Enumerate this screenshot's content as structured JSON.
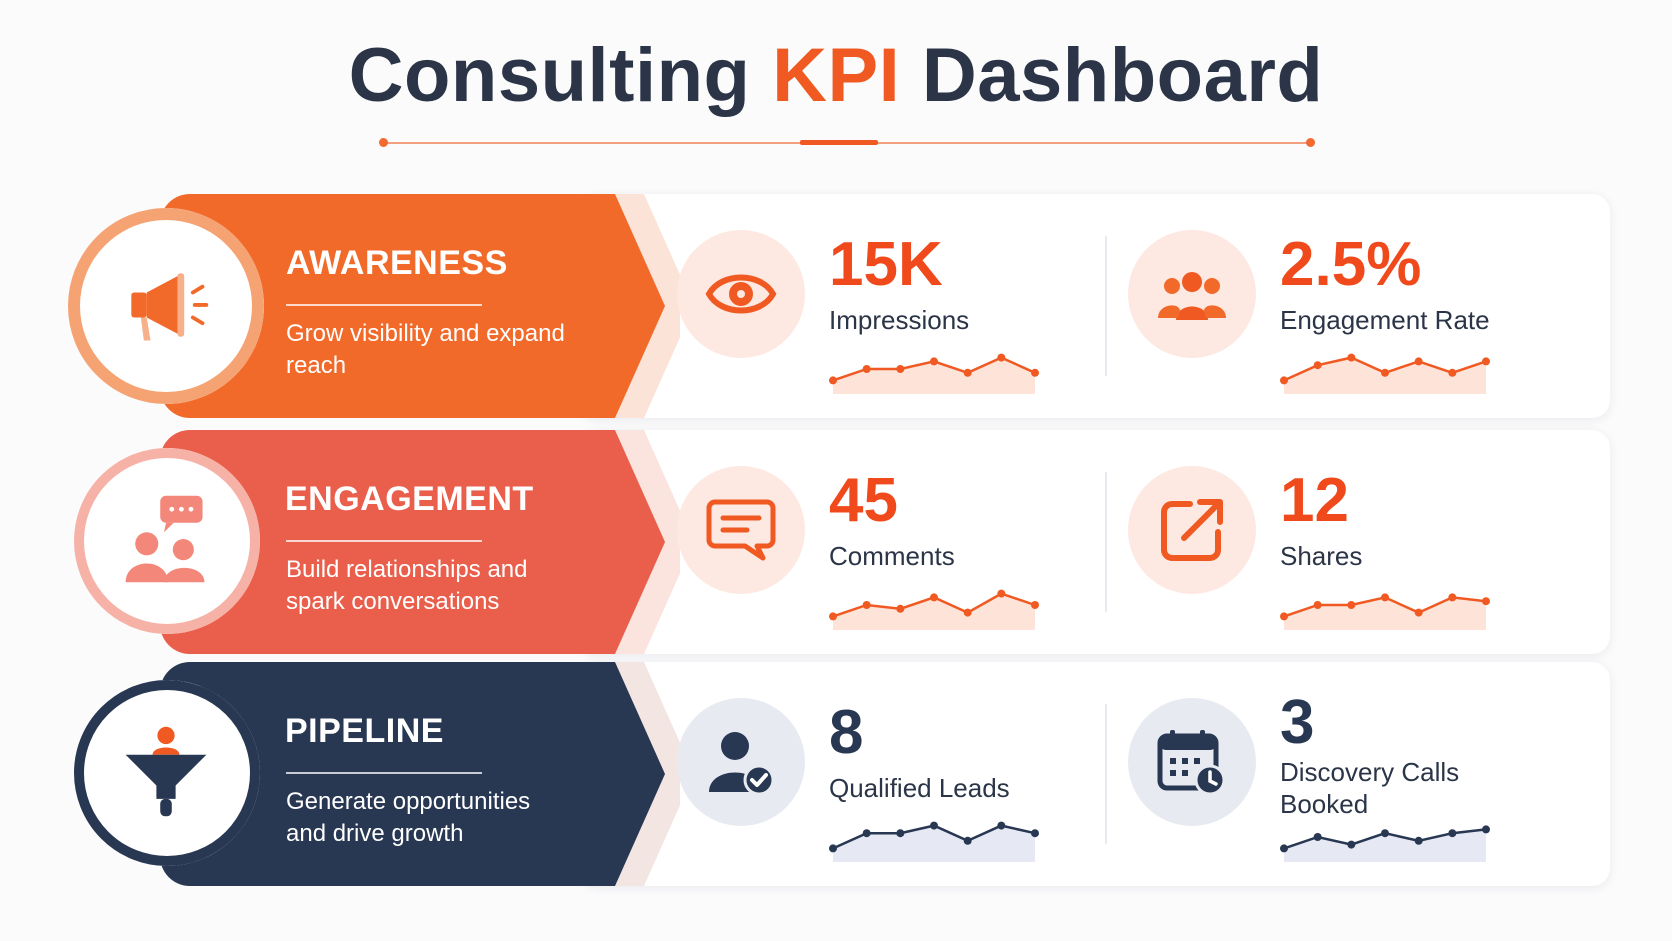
{
  "header": {
    "title_part1": "Consulting",
    "title_accent": "KPI",
    "title_part2": "Dashboard"
  },
  "colors": {
    "orange": "#f26a2a",
    "coral": "#ea5e4c",
    "navy": "#283752",
    "accent_text": "#f04a1c"
  },
  "rows": [
    {
      "category": "AWARENESS",
      "description": "Grow visibility and expand reach",
      "icon": "megaphone-icon",
      "kpis": [
        {
          "value": "15K",
          "label": "Impressions",
          "icon": "eye-icon",
          "trend": [
            2,
            5,
            5,
            7,
            4,
            8,
            4
          ]
        },
        {
          "value": "2.5%",
          "label": "Engagement Rate",
          "icon": "group-icon",
          "trend": [
            2,
            6,
            8,
            4,
            7,
            4,
            7
          ]
        }
      ]
    },
    {
      "category": "ENGAGEMENT",
      "description": "Build relationships and spark conversations",
      "icon": "chat-people-icon",
      "kpis": [
        {
          "value": "45",
          "label": "Comments",
          "icon": "comment-icon",
          "trend": [
            2,
            5,
            4,
            7,
            3,
            8,
            5
          ]
        },
        {
          "value": "12",
          "label": "Shares",
          "icon": "share-icon",
          "trend": [
            2,
            5,
            5,
            7,
            3,
            7,
            6
          ]
        }
      ]
    },
    {
      "category": "PIPELINE",
      "description": "Generate opportunities and drive growth",
      "icon": "funnel-icon",
      "kpis": [
        {
          "value": "8",
          "label": "Qualified Leads",
          "icon": "verified-user-icon",
          "trend": [
            2,
            6,
            6,
            8,
            4,
            8,
            6
          ]
        },
        {
          "value": "3",
          "label": "Discovery Calls Booked",
          "icon": "calendar-clock-icon",
          "trend": [
            2,
            5,
            3,
            6,
            4,
            6,
            7
          ]
        }
      ]
    }
  ]
}
